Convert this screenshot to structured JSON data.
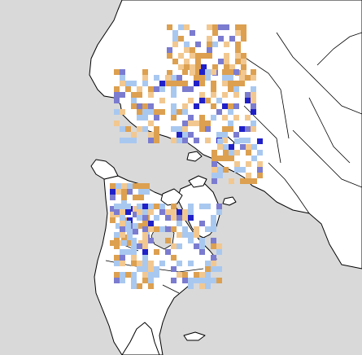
{
  "map": {
    "projection": "polar",
    "background_color": "#d9d9d9",
    "land_color": "#ffffff",
    "outline_color": "#000000"
  },
  "anomaly_palette": {
    "much_below": "#2020c8",
    "below": "#7b7bd0",
    "slightly_below": "#a9c8f0",
    "slightly_above": "#f2c890",
    "above": "#dca050"
  },
  "legend": []
}
